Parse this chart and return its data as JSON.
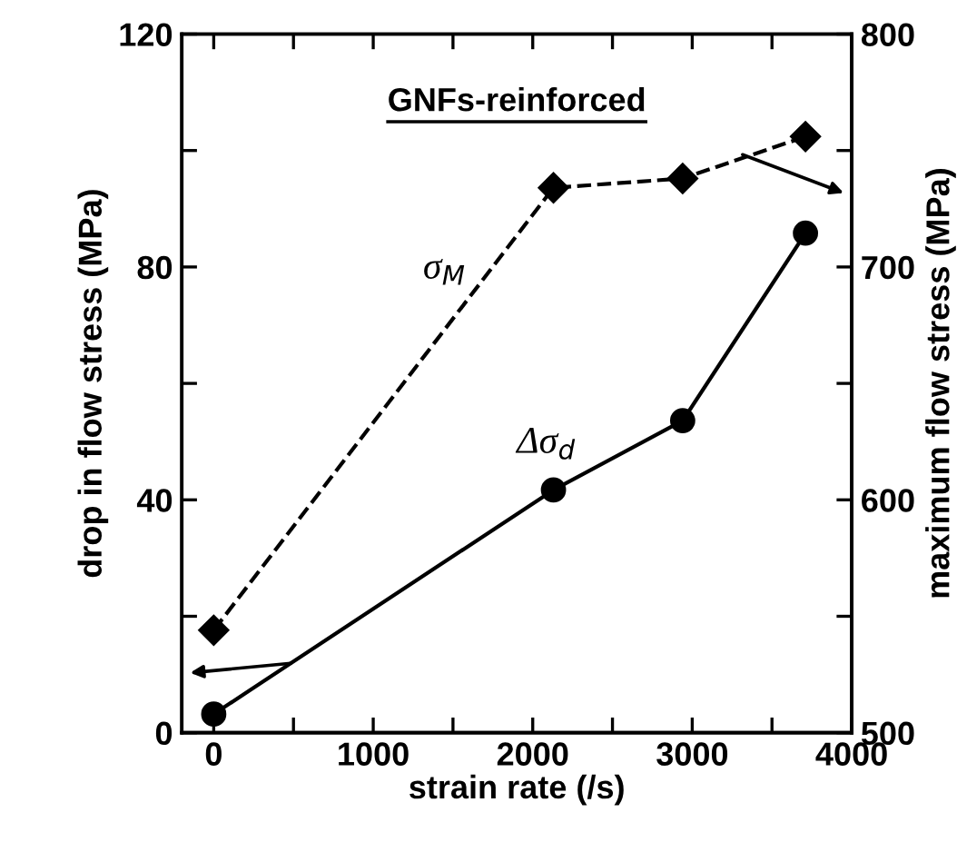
{
  "chart_data": {
    "type": "line",
    "title": "GNFs-reinforced",
    "xlabel": "strain rate (/s)",
    "ylabel": "drop in flow stress (MPa)",
    "y2label": "maximum flow stress (MPa)",
    "x": [
      0,
      2130,
      2940,
      3710
    ],
    "series": [
      {
        "name": "Δσ$_{d}$",
        "color": "#000000",
        "values": [
          3.2,
          41.7,
          53.6,
          85.8
        ],
        "marker": "circle",
        "line_style": "solid"
      },
      {
        "name": "σ$_{M}$",
        "color": "#000000",
        "values": [
          544,
          734,
          738,
          756
        ],
        "marker": "diamond",
        "line_style": "dashed",
        "axis": "y2"
      }
    ],
    "xlim": [
      -200,
      4000
    ],
    "xticks": [
      0,
      {
        "value": 500,
        "label": null
      },
      1000,
      {
        "value": 1500,
        "label": null
      },
      2000,
      {
        "value": 2500,
        "label": null
      },
      3000,
      {
        "value": 3500,
        "label": null
      },
      4000
    ],
    "ylim": [
      0,
      120
    ],
    "yticks": [
      0,
      {
        "value": 20,
        "label": null
      },
      40,
      {
        "value": 60,
        "label": null
      },
      80,
      {
        "value": 100,
        "label": null
      },
      120
    ],
    "y2lim": [
      500,
      800
    ],
    "y2ticks": [
      500,
      {
        "value": 550,
        "label": null
      },
      600,
      {
        "value": 650,
        "label": null
      },
      700,
      {
        "value": 750,
        "label": null
      },
      800
    ],
    "grid": false,
    "legend": false
  }
}
